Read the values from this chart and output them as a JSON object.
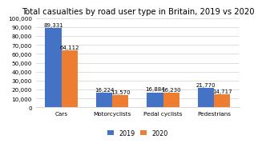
{
  "title": "Total casualties by road user type in Britain, 2019 vs 2020",
  "categories": [
    "Cars",
    "Motorcyclists",
    "Pedal cyclists",
    "Pedestrians"
  ],
  "values_2019": [
    89331,
    16224,
    16884,
    21770
  ],
  "values_2020": [
    64112,
    13570,
    16230,
    14717
  ],
  "color_2019": "#4472c4",
  "color_2020": "#ed7d31",
  "ylim": [
    0,
    100000
  ],
  "yticks": [
    0,
    10000,
    20000,
    30000,
    40000,
    50000,
    60000,
    70000,
    80000,
    90000,
    100000
  ],
  "bar_width": 0.32,
  "legend_labels": [
    "2019",
    "2020"
  ],
  "background_color": "#ffffff",
  "plot_bg_color": "#ffffff",
  "grid_color": "#d9d9d9",
  "label_fontsize": 5.0,
  "title_fontsize": 7.2,
  "tick_fontsize": 5.2,
  "legend_fontsize": 5.8,
  "ytick_labels": [
    "0",
    "10,000",
    "20,000",
    "30,000",
    "40,000",
    "50,000",
    "60,000",
    "70,000",
    "80,000",
    "90,000",
    "100,000"
  ]
}
